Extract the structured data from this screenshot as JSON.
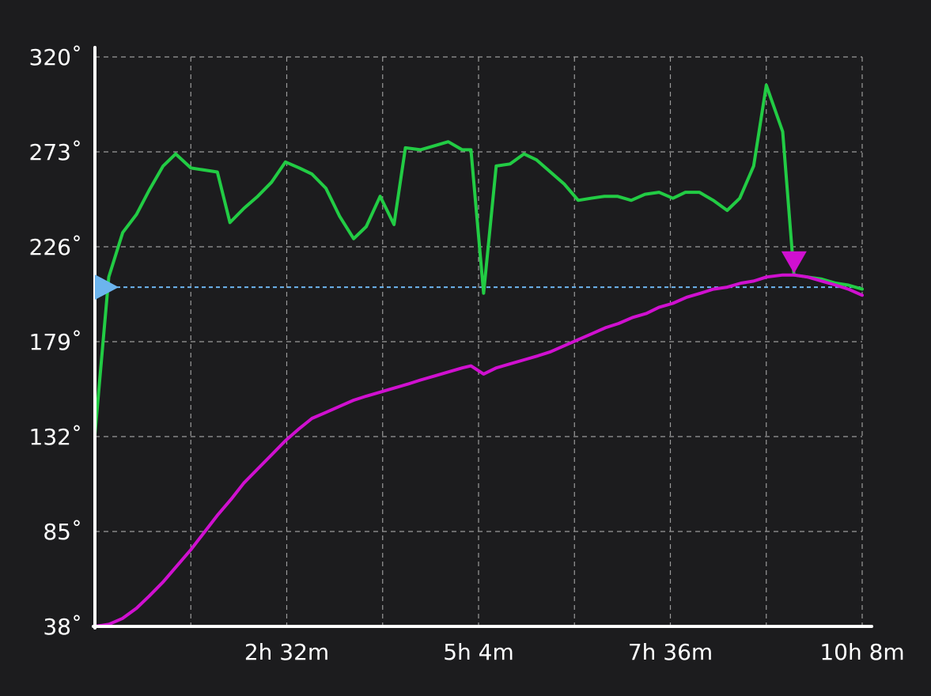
{
  "colors": {
    "background": "#1c1c1e",
    "axis": "#ffffff",
    "grid": "#9a9a9a",
    "setpoint": "#6cb4ee",
    "series_green": "#22cc44",
    "series_magenta": "#d010d0"
  },
  "chart_data": {
    "type": "line",
    "title": "",
    "xlabel": "",
    "ylabel": "",
    "grid": true,
    "xlim": [
      0,
      608
    ],
    "ylim": [
      38,
      320
    ],
    "y_ticks": [
      38,
      85,
      132,
      179,
      226,
      273,
      320
    ],
    "y_tick_labels": [
      "38˚",
      "85˚",
      "132˚",
      "179˚",
      "226˚",
      "273˚",
      "320˚"
    ],
    "x_ticks": [
      152,
      304,
      456,
      608
    ],
    "x_tick_labels": [
      "2h 32m",
      "5h 4m",
      "7h 36m",
      "10h 8m"
    ],
    "x_gridlines": [
      76,
      152,
      228,
      304,
      380,
      456,
      532,
      608
    ],
    "setpoint": {
      "value": 206,
      "marker": "right-pointing-triangle",
      "style": "dashed"
    },
    "peak_marker": {
      "x": 554,
      "y": 212,
      "marker": "down-pointing-triangle"
    },
    "series": [
      {
        "x": [
          0,
          11,
          22,
          33,
          43,
          54,
          64,
          76,
          97,
          107,
          118,
          129,
          140,
          151,
          162,
          172,
          183,
          194,
          205,
          215,
          226,
          237,
          246,
          258,
          269,
          280,
          291,
          298,
          308,
          318,
          329,
          340,
          350,
          361,
          372,
          383,
          393,
          404,
          414,
          425,
          436,
          447,
          458,
          468,
          479,
          490,
          501,
          511,
          522,
          532,
          545,
          554,
          565,
          576,
          587,
          597,
          608
        ],
        "y": [
          133,
          211,
          233,
          242,
          254,
          266,
          272,
          265,
          263,
          238,
          245,
          251,
          258,
          268,
          265,
          262,
          255,
          241,
          230,
          236,
          251,
          237,
          275,
          274,
          276,
          278,
          274,
          274,
          203,
          266,
          267,
          272,
          269,
          263,
          257,
          249,
          250,
          251,
          251,
          249,
          252,
          253,
          250,
          253,
          253,
          249,
          244,
          250,
          266,
          306,
          283,
          212,
          211,
          210,
          208,
          207,
          205
        ]
      },
      {
        "x": [
          0,
          11,
          22,
          33,
          43,
          54,
          65,
          76,
          97,
          108,
          118,
          129,
          140,
          151,
          162,
          172,
          183,
          194,
          205,
          215,
          226,
          237,
          248,
          258,
          269,
          280,
          291,
          298,
          308,
          318,
          329,
          340,
          351,
          361,
          372,
          383,
          394,
          405,
          415,
          426,
          437,
          447,
          458,
          469,
          480,
          490,
          501,
          512,
          522,
          532,
          545,
          554,
          565,
          576,
          587,
          597,
          608
        ],
        "y": [
          38,
          39,
          42,
          47,
          53,
          60,
          68,
          76,
          93,
          101,
          109,
          116,
          123,
          130,
          136,
          141,
          144,
          147,
          150,
          152,
          154,
          156,
          158,
          160,
          162,
          164,
          166,
          167,
          163,
          166,
          168,
          170,
          172,
          174,
          177,
          180,
          183,
          186,
          188,
          191,
          193,
          196,
          198,
          201,
          203,
          205,
          206,
          208,
          209,
          211,
          212,
          212,
          211,
          209,
          207,
          205,
          202
        ]
      }
    ]
  }
}
